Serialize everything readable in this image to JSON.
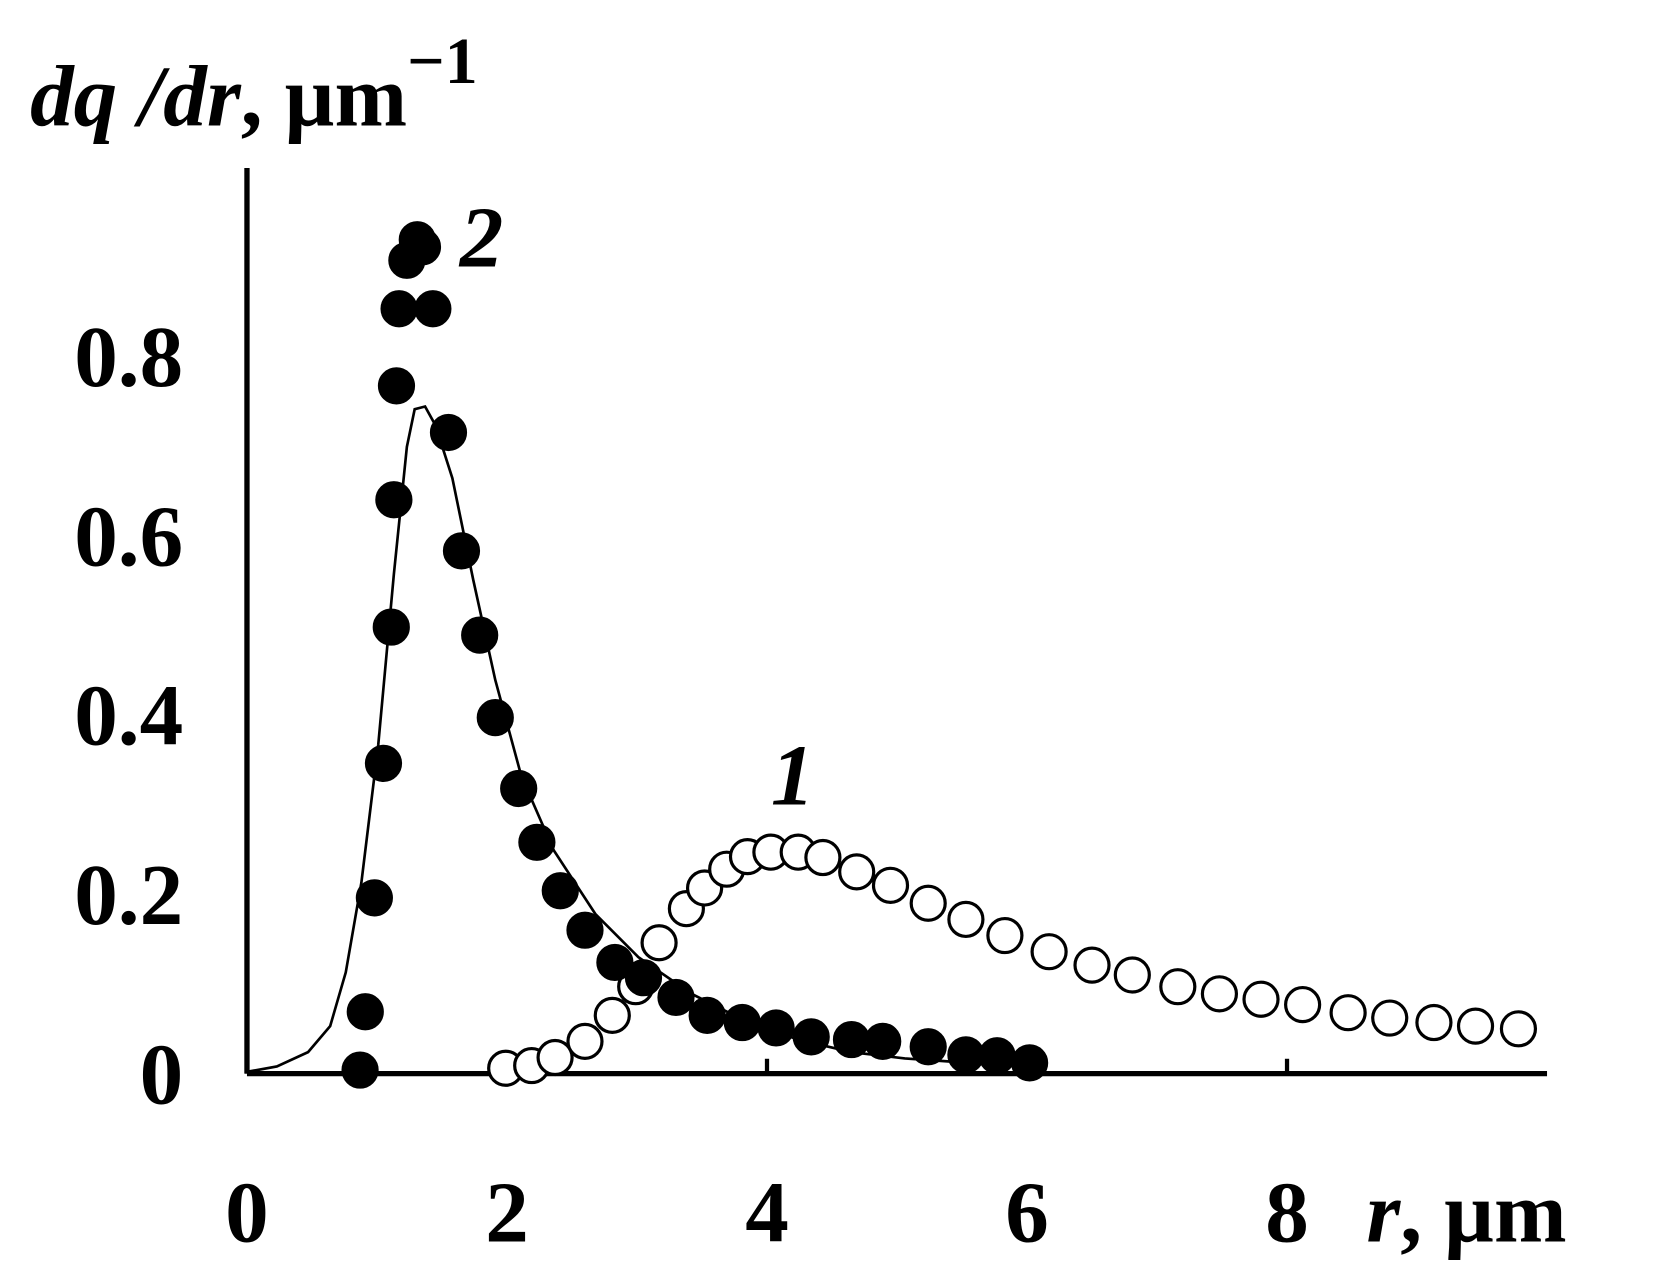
{
  "chart_data": {
    "type": "scatter",
    "y_label": [
      "dq /dr",
      ", µm",
      "−1"
    ],
    "x_label": [
      "r",
      ", µm"
    ],
    "xlim": [
      0,
      10
    ],
    "ylim": [
      0,
      1.01
    ],
    "xticks": [
      0,
      2,
      4,
      6,
      8
    ],
    "yticks": [
      0,
      0.2,
      0.4,
      0.6,
      0.8
    ],
    "series": [
      {
        "name": "1",
        "color": "#000000",
        "filled": false,
        "x": [
          1.99,
          2.19,
          2.37,
          2.6,
          2.81,
          2.99,
          3.17,
          3.38,
          3.52,
          3.69,
          3.85,
          4.03,
          4.24,
          4.43,
          4.69,
          4.95,
          5.24,
          5.53,
          5.83,
          6.17,
          6.5,
          6.81,
          7.16,
          7.48,
          7.8,
          8.12,
          8.47,
          8.79,
          9.13,
          9.45,
          9.78
        ],
        "values": [
          0.006,
          0.009,
          0.018,
          0.036,
          0.065,
          0.097,
          0.146,
          0.184,
          0.207,
          0.228,
          0.242,
          0.247,
          0.247,
          0.241,
          0.225,
          0.21,
          0.19,
          0.172,
          0.154,
          0.136,
          0.121,
          0.11,
          0.097,
          0.089,
          0.083,
          0.077,
          0.068,
          0.062,
          0.057,
          0.053,
          0.05
        ]
      },
      {
        "name": "2",
        "color": "#000000",
        "filled": true,
        "x": [
          0.87,
          0.91,
          0.98,
          1.05,
          1.11,
          1.13,
          1.15,
          1.17,
          1.43,
          1.23,
          1.35,
          1.31,
          1.55,
          1.65,
          1.79,
          1.91,
          2.09,
          2.23,
          2.41,
          2.6,
          2.83,
          3.05,
          3.3,
          3.54,
          3.81,
          4.07,
          4.34,
          4.65,
          4.89,
          5.24,
          5.53,
          5.77,
          6.02
        ],
        "values": [
          0.004,
          0.069,
          0.196,
          0.346,
          0.498,
          0.64,
          0.767,
          0.853,
          0.853,
          0.907,
          0.922,
          0.93,
          0.715,
          0.583,
          0.489,
          0.397,
          0.318,
          0.258,
          0.204,
          0.16,
          0.124,
          0.107,
          0.085,
          0.065,
          0.057,
          0.051,
          0.041,
          0.038,
          0.036,
          0.03,
          0.021,
          0.02,
          0.012
        ]
      }
    ],
    "fit": {
      "color": "#000000",
      "x": [
        0,
        0.23,
        0.47,
        0.64,
        0.76,
        0.88,
        1.01,
        1.13,
        1.23,
        1.29,
        1.37,
        1.45,
        1.58,
        1.74,
        1.91,
        2.11,
        2.36,
        2.68,
        3.01,
        3.42,
        3.83,
        4.24,
        4.65,
        5.06,
        5.46,
        5.87
      ],
      "values": [
        0.002,
        0.008,
        0.024,
        0.053,
        0.113,
        0.213,
        0.367,
        0.557,
        0.699,
        0.741,
        0.744,
        0.723,
        0.664,
        0.551,
        0.439,
        0.332,
        0.249,
        0.178,
        0.13,
        0.089,
        0.059,
        0.038,
        0.024,
        0.017,
        0.013,
        0.012
      ]
    }
  }
}
